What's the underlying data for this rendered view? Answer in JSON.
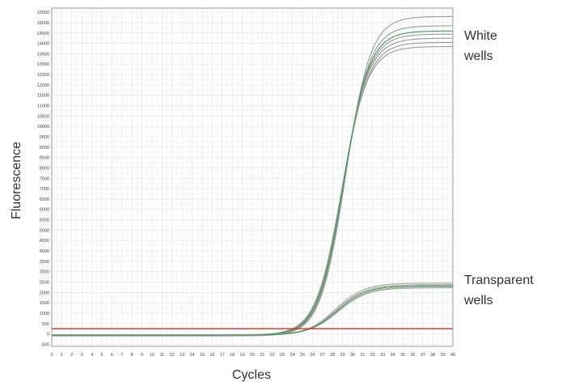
{
  "chart_data": {
    "type": "line",
    "xlabel": "Cycles",
    "ylabel": "Fluorescence",
    "xlim": [
      0,
      40
    ],
    "ylim": [
      -600,
      15700
    ],
    "x_ticks": [
      0,
      1,
      2,
      3,
      4,
      5,
      6,
      7,
      8,
      9,
      10,
      11,
      12,
      13,
      14,
      15,
      16,
      17,
      18,
      19,
      20,
      21,
      22,
      23,
      24,
      25,
      26,
      27,
      28,
      29,
      30,
      31,
      32,
      33,
      34,
      35,
      36,
      37,
      38,
      39,
      40
    ],
    "y_ticks": [
      -500,
      0,
      500,
      1000,
      1500,
      2000,
      2500,
      3000,
      3500,
      4000,
      4500,
      5000,
      5500,
      6000,
      6500,
      7000,
      7500,
      8000,
      8500,
      9000,
      9500,
      10000,
      10500,
      11000,
      11500,
      12000,
      12500,
      13000,
      13500,
      14000,
      14500,
      15000,
      15500
    ],
    "grid": true,
    "threshold": {
      "y": 250,
      "color": "#e0271f"
    },
    "annotations": [
      {
        "lines": [
          "White",
          "wells"
        ],
        "group": "white"
      },
      {
        "lines": [
          "Transparent",
          "wells"
        ],
        "group": "transparent"
      }
    ],
    "groups": [
      {
        "group": "white",
        "color": "#9a9a9a",
        "curves": [
          {
            "baseline": -100,
            "plateau": 15300,
            "midpoint": 29.3,
            "slope": 1.25
          },
          {
            "baseline": -80,
            "plateau": 14850,
            "midpoint": 29.2,
            "slope": 1.25
          },
          {
            "baseline": -90,
            "plateau": 14450,
            "midpoint": 29.1,
            "slope": 1.27
          },
          {
            "baseline": -70,
            "plateau": 14250,
            "midpoint": 29.0,
            "slope": 1.28
          },
          {
            "baseline": -60,
            "plateau": 14050,
            "midpoint": 29.0,
            "slope": 1.28
          },
          {
            "baseline": -50,
            "plateau": 13850,
            "midpoint": 28.9,
            "slope": 1.29
          }
        ]
      },
      {
        "group": "white-green",
        "color": "#3d9a4a",
        "curves": [
          {
            "baseline": -60,
            "plateau": 14600,
            "midpoint": 29.1,
            "slope": 1.27
          }
        ]
      },
      {
        "group": "transparent",
        "color": "#a8a8a8",
        "curves": [
          {
            "baseline": -80,
            "plateau": 2450,
            "midpoint": 28.3,
            "slope": 1.45
          },
          {
            "baseline": -60,
            "plateau": 2380,
            "midpoint": 28.4,
            "slope": 1.45
          },
          {
            "baseline": -70,
            "plateau": 2320,
            "midpoint": 28.5,
            "slope": 1.45
          },
          {
            "baseline": -50,
            "plateau": 2260,
            "midpoint": 28.6,
            "slope": 1.45
          },
          {
            "baseline": -40,
            "plateau": 2220,
            "midpoint": 28.6,
            "slope": 1.45
          }
        ]
      },
      {
        "group": "transparent-green",
        "color": "#3d9a4a",
        "curves": [
          {
            "baseline": -60,
            "plateau": 2320,
            "midpoint": 28.5,
            "slope": 1.45
          }
        ]
      }
    ]
  }
}
